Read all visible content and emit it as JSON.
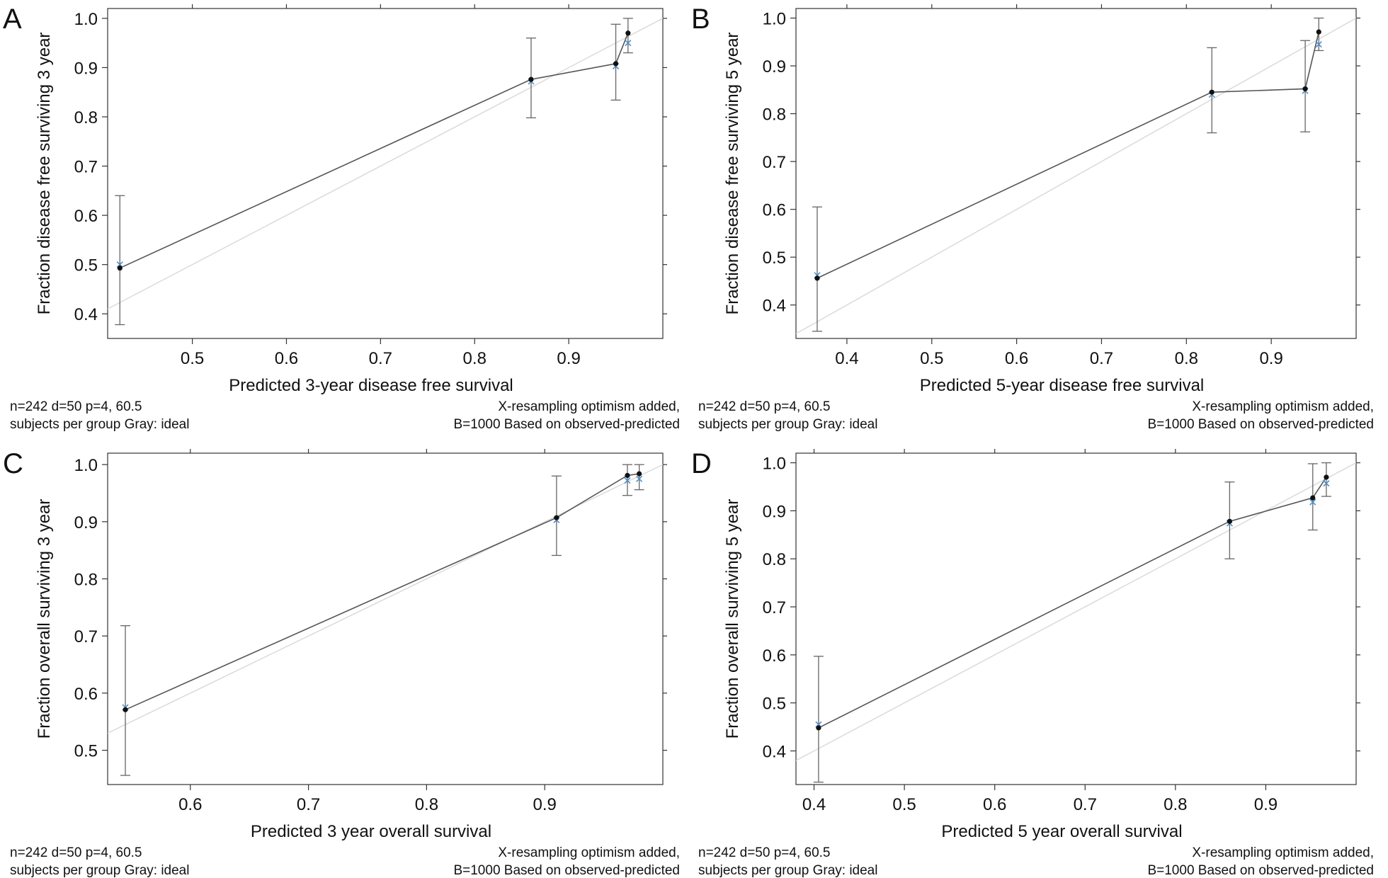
{
  "colors": {
    "observed": "#555555",
    "ideal": "#d8d8d8",
    "errorbar": "#666666",
    "point": "#111111",
    "corrected": "#4f8fc8"
  },
  "chart_data": [
    {
      "type": "line",
      "panel_label": "A",
      "xlabel": "Predicted 3-year disease free survival",
      "ylabel": "Fraction disease free surviving 3 year",
      "xlim": [
        0.41,
        1.0
      ],
      "ylim": [
        0.35,
        1.02
      ],
      "xticks": [
        "0.5",
        "0.6",
        "0.7",
        "0.8",
        "0.9"
      ],
      "yticks": [
        "0.4",
        "0.5",
        "0.6",
        "0.7",
        "0.8",
        "0.9",
        "1.0"
      ],
      "points": [
        {
          "x": 0.423,
          "y": 0.493,
          "lower": 0.378,
          "upper": 0.64,
          "corrected": 0.5
        },
        {
          "x": 0.86,
          "y": 0.876,
          "lower": 0.798,
          "upper": 0.96,
          "corrected": 0.872
        },
        {
          "x": 0.95,
          "y": 0.908,
          "lower": 0.834,
          "upper": 0.988,
          "corrected": 0.903
        },
        {
          "x": 0.963,
          "y": 0.97,
          "lower": 0.93,
          "upper": 1.0,
          "corrected": 0.95
        }
      ],
      "note_left": [
        "n=242 d=50 p=4, 60.5",
        "subjects per group Gray: ideal"
      ],
      "note_right": [
        "X-resampling optimism added,",
        "B=1000 Based on observed-predicted"
      ]
    },
    {
      "type": "line",
      "panel_label": "B",
      "xlabel": "Predicted 5-year disease free survival",
      "ylabel": "Fraction disease free surviving 5 year",
      "xlim": [
        0.34,
        1.0
      ],
      "ylim": [
        0.33,
        1.02
      ],
      "xticks": [
        "0.4",
        "0.5",
        "0.6",
        "0.7",
        "0.8",
        "0.9"
      ],
      "yticks": [
        "0.4",
        "0.5",
        "0.6",
        "0.7",
        "0.8",
        "0.9",
        "1.0"
      ],
      "points": [
        {
          "x": 0.365,
          "y": 0.456,
          "lower": 0.345,
          "upper": 0.605,
          "corrected": 0.462
        },
        {
          "x": 0.83,
          "y": 0.845,
          "lower": 0.76,
          "upper": 0.938,
          "corrected": 0.84
        },
        {
          "x": 0.94,
          "y": 0.852,
          "lower": 0.762,
          "upper": 0.953,
          "corrected": 0.848
        },
        {
          "x": 0.956,
          "y": 0.971,
          "lower": 0.932,
          "upper": 1.0,
          "corrected": 0.945
        }
      ],
      "note_left": [
        "n=242 d=50 p=4, 60.5",
        "subjects per group Gray: ideal"
      ],
      "note_right": [
        "X-resampling optimism added,",
        "B=1000 Based on observed-predicted"
      ]
    },
    {
      "type": "line",
      "panel_label": "C",
      "xlabel": "Predicted 3 year overall survival",
      "ylabel": "Fraction overall surviving 3 year",
      "xlim": [
        0.53,
        1.0
      ],
      "ylim": [
        0.44,
        1.02
      ],
      "xticks": [
        "0.6",
        "0.7",
        "0.8",
        "0.9"
      ],
      "yticks": [
        "0.5",
        "0.6",
        "0.7",
        "0.8",
        "0.9",
        "1.0"
      ],
      "points": [
        {
          "x": 0.545,
          "y": 0.571,
          "lower": 0.456,
          "upper": 0.718,
          "corrected": 0.575
        },
        {
          "x": 0.91,
          "y": 0.907,
          "lower": 0.841,
          "upper": 0.98,
          "corrected": 0.903
        },
        {
          "x": 0.97,
          "y": 0.981,
          "lower": 0.946,
          "upper": 1.0,
          "corrected": 0.972
        },
        {
          "x": 0.98,
          "y": 0.984,
          "lower": 0.956,
          "upper": 1.0,
          "corrected": 0.975
        }
      ],
      "note_left": [
        "n=242 d=50 p=4, 60.5",
        "subjects per group Gray: ideal"
      ],
      "note_right": [
        "X-resampling optimism added,",
        "B=1000 Based on observed-predicted"
      ]
    },
    {
      "type": "line",
      "panel_label": "D",
      "xlabel": "Predicted 5 year overall survival",
      "ylabel": "Fraction overall surviving 5 year",
      "xlim": [
        0.38,
        1.0
      ],
      "ylim": [
        0.33,
        1.02
      ],
      "xticks": [
        "0.4",
        "0.5",
        "0.6",
        "0.7",
        "0.8",
        "0.9"
      ],
      "yticks": [
        "0.4",
        "0.5",
        "0.6",
        "0.7",
        "0.8",
        "0.9",
        "1.0"
      ],
      "points": [
        {
          "x": 0.405,
          "y": 0.448,
          "lower": 0.335,
          "upper": 0.597,
          "corrected": 0.455
        },
        {
          "x": 0.86,
          "y": 0.878,
          "lower": 0.8,
          "upper": 0.96,
          "corrected": 0.874
        },
        {
          "x": 0.952,
          "y": 0.927,
          "lower": 0.86,
          "upper": 0.998,
          "corrected": 0.918
        },
        {
          "x": 0.967,
          "y": 0.97,
          "lower": 0.93,
          "upper": 1.0,
          "corrected": 0.957
        }
      ],
      "note_left": [
        "n=242 d=50 p=4, 60.5",
        "subjects per group Gray: ideal"
      ],
      "note_right": [
        "X-resampling optimism added,",
        "B=1000 Based on observed-predicted"
      ]
    }
  ]
}
